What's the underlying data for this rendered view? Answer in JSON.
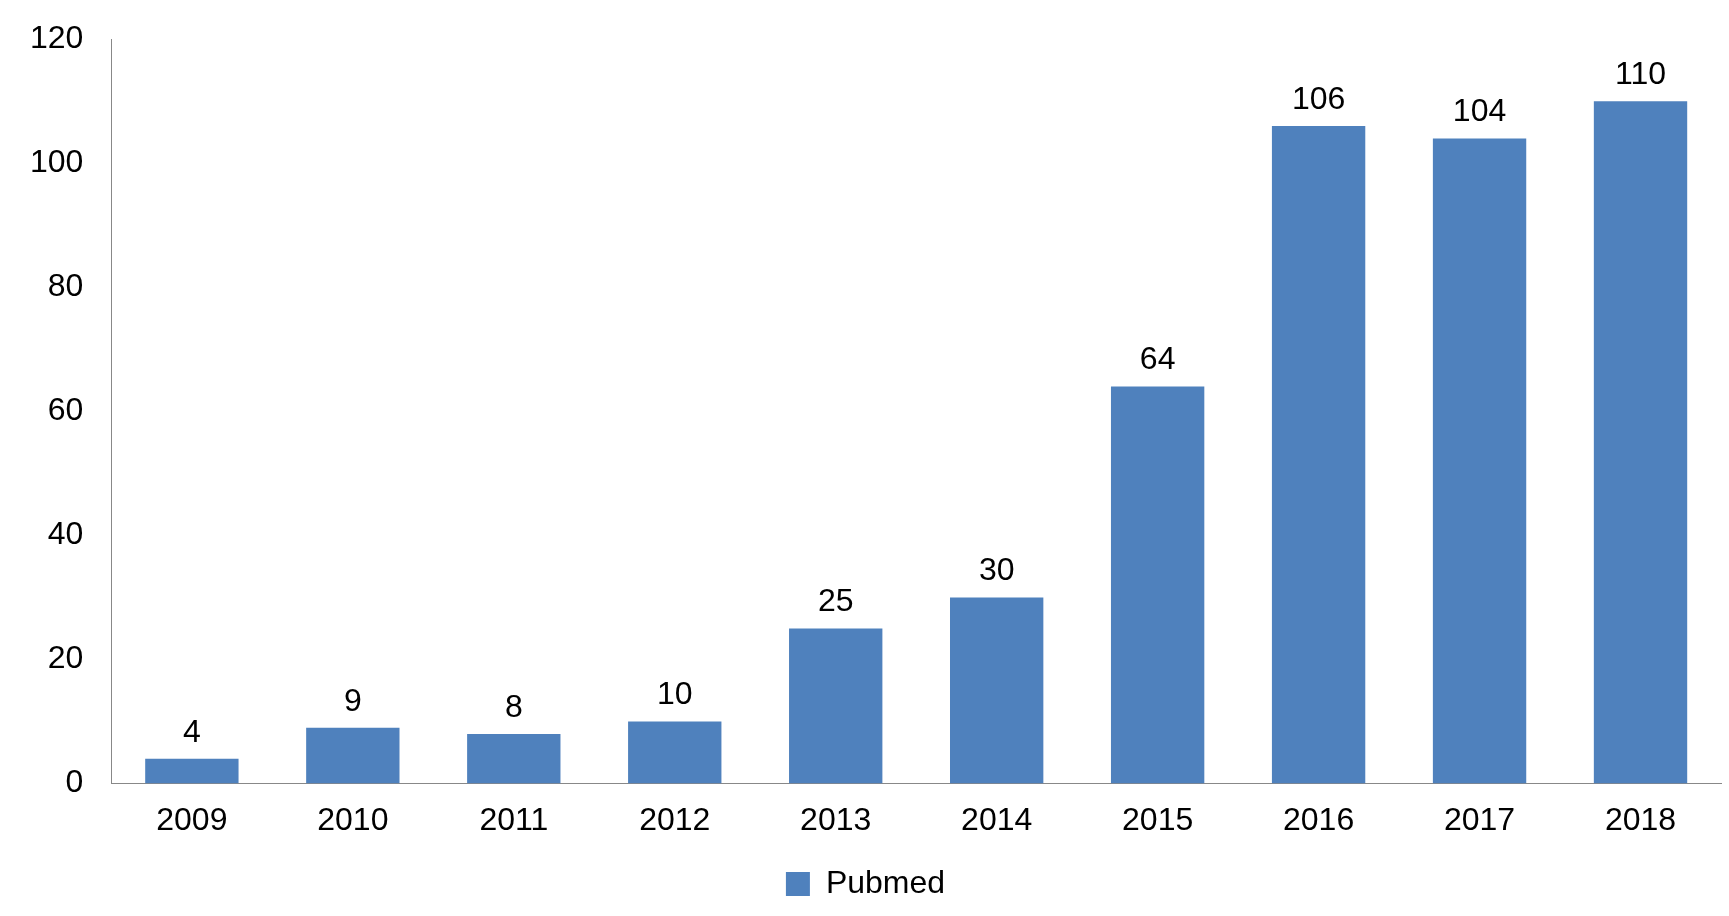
{
  "chart_data": {
    "type": "bar",
    "categories": [
      "2009",
      "2010",
      "2011",
      "2012",
      "2013",
      "2014",
      "2015",
      "2016",
      "2017",
      "2018"
    ],
    "series": [
      {
        "name": "Pubmed",
        "color": "#4f81bd",
        "values": [
          4,
          9,
          8,
          10,
          25,
          30,
          64,
          106,
          104,
          110
        ]
      }
    ],
    "ylim": [
      0,
      120
    ],
    "yticks": [
      0,
      20,
      40,
      60,
      80,
      100,
      120
    ],
    "grid": false,
    "legend": "bottom",
    "data_labels": true
  }
}
